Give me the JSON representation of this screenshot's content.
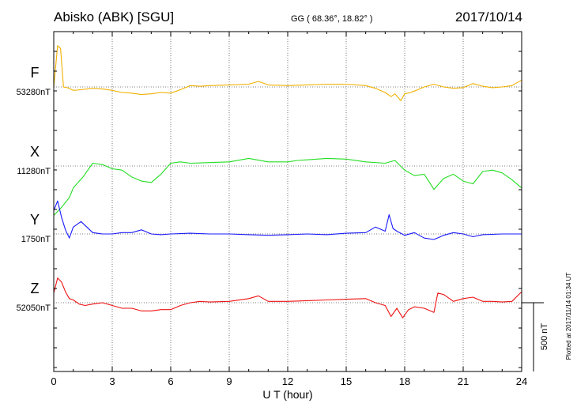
{
  "header": {
    "station": "Abisko (ABK)  [SGU]",
    "coords": "GG ( 68.36°,  18.82° )",
    "date": "2017/10/14"
  },
  "side_note": "Plotted at 2017/11/14 01:34  UT",
  "chart_data": {
    "type": "line",
    "xlabel": "U T (hour)",
    "xlim": [
      0,
      24
    ],
    "xticks": [
      0,
      3,
      6,
      9,
      12,
      15,
      18,
      21,
      24
    ],
    "grid": true,
    "scale_bar_label": "500 nT",
    "scale_bar_nT": 500,
    "series": [
      {
        "name": "F",
        "baseline_label": "53280nT",
        "baseline_nT": 53280,
        "color": "#f0b000",
        "x": [
          0,
          0.2,
          0.35,
          0.5,
          0.7,
          1.0,
          1.4,
          2.0,
          2.5,
          3.0,
          3.5,
          4.0,
          4.5,
          5.0,
          5.5,
          6.0,
          6.5,
          7.0,
          7.5,
          8.0,
          9.0,
          10.0,
          10.5,
          11.0,
          12.0,
          13.0,
          14.0,
          15.0,
          16.0,
          16.5,
          17.0,
          17.3,
          17.5,
          17.8,
          18.0,
          18.3,
          18.6,
          19.0,
          19.5,
          20.0,
          20.5,
          21.0,
          21.5,
          22.0,
          22.5,
          23.0,
          23.5,
          24.0
        ],
        "y": [
          53280,
          53580,
          53560,
          53280,
          53275,
          53255,
          53260,
          53270,
          53265,
          53255,
          53240,
          53235,
          53225,
          53230,
          53240,
          53235,
          53260,
          53290,
          53285,
          53290,
          53295,
          53300,
          53320,
          53295,
          53290,
          53295,
          53300,
          53300,
          53290,
          53270,
          53240,
          53210,
          53230,
          53180,
          53230,
          53240,
          53255,
          53280,
          53300,
          53280,
          53270,
          53275,
          53305,
          53285,
          53275,
          53280,
          53290,
          53330
        ]
      },
      {
        "name": "X",
        "baseline_label": "11280nT",
        "baseline_nT": 11280,
        "color": "#22dd22",
        "x": [
          0,
          0.4,
          0.8,
          1.0,
          1.5,
          2.0,
          2.5,
          3.0,
          3.5,
          4.0,
          4.5,
          5.0,
          5.5,
          6.0,
          6.5,
          7.0,
          8.0,
          9.0,
          10.0,
          11.0,
          12.0,
          12.5,
          13.0,
          14.0,
          15.0,
          16.0,
          17.0,
          17.5,
          18.0,
          18.5,
          19.0,
          19.5,
          20.0,
          20.5,
          21.0,
          21.5,
          22.0,
          22.5,
          23.0,
          23.5,
          24.0
        ],
        "y": [
          10920,
          10980,
          11050,
          11120,
          11200,
          11300,
          11290,
          11260,
          11250,
          11200,
          11170,
          11160,
          11220,
          11300,
          11310,
          11300,
          11305,
          11310,
          11335,
          11310,
          11310,
          11320,
          11325,
          11335,
          11330,
          11310,
          11300,
          11320,
          11250,
          11210,
          11220,
          11110,
          11190,
          11220,
          11170,
          11150,
          11240,
          11250,
          11230,
          11180,
          11120
        ]
      },
      {
        "name": "Y",
        "baseline_label": "1750nT",
        "baseline_nT": 1750,
        "color": "#1a1aff",
        "x": [
          0,
          0.2,
          0.4,
          0.6,
          0.8,
          1.0,
          1.4,
          2.0,
          2.5,
          3.0,
          3.5,
          4.0,
          4.5,
          5.0,
          5.5,
          6.0,
          7.0,
          8.0,
          9.0,
          10.0,
          11.0,
          12.0,
          13.0,
          14.0,
          15.0,
          16.0,
          16.5,
          17.0,
          17.2,
          17.4,
          17.6,
          18.0,
          18.5,
          19.0,
          19.5,
          20.0,
          20.5,
          21.0,
          21.5,
          22.0,
          23.0,
          24.0
        ],
        "y": [
          1920,
          1990,
          1870,
          1780,
          1720,
          1800,
          1840,
          1760,
          1750,
          1750,
          1760,
          1760,
          1780,
          1750,
          1745,
          1750,
          1755,
          1750,
          1750,
          1745,
          1740,
          1745,
          1750,
          1745,
          1755,
          1760,
          1800,
          1770,
          1890,
          1790,
          1770,
          1740,
          1760,
          1720,
          1710,
          1740,
          1760,
          1750,
          1730,
          1745,
          1750,
          1750
        ]
      },
      {
        "name": "Z",
        "baseline_label": "52050nT",
        "baseline_nT": 52050,
        "color": "#ee1111",
        "x": [
          0,
          0.2,
          0.4,
          0.6,
          0.8,
          1.0,
          1.3,
          1.6,
          2.0,
          2.5,
          3.0,
          3.5,
          4.0,
          4.5,
          5.0,
          5.5,
          6.0,
          6.5,
          7.0,
          7.5,
          8.0,
          9.0,
          10.0,
          10.5,
          11.0,
          12.0,
          13.0,
          14.0,
          15.0,
          16.0,
          16.5,
          17.0,
          17.3,
          17.6,
          17.9,
          18.2,
          18.5,
          19.0,
          19.5,
          19.7,
          20.0,
          20.5,
          21.0,
          21.5,
          22.0,
          22.5,
          23.0,
          23.5,
          24.0
        ],
        "y": [
          52120,
          52230,
          52200,
          52130,
          52080,
          52070,
          52040,
          52030,
          52040,
          52050,
          52030,
          52010,
          52010,
          51990,
          51990,
          52000,
          52000,
          52030,
          52050,
          52060,
          52055,
          52060,
          52080,
          52100,
          52060,
          52060,
          52065,
          52070,
          52075,
          52080,
          52050,
          52030,
          51950,
          52010,
          51940,
          52000,
          52020,
          52010,
          51980,
          52120,
          52110,
          52060,
          52080,
          52090,
          52060,
          52060,
          52055,
          52060,
          52130
        ]
      }
    ]
  }
}
